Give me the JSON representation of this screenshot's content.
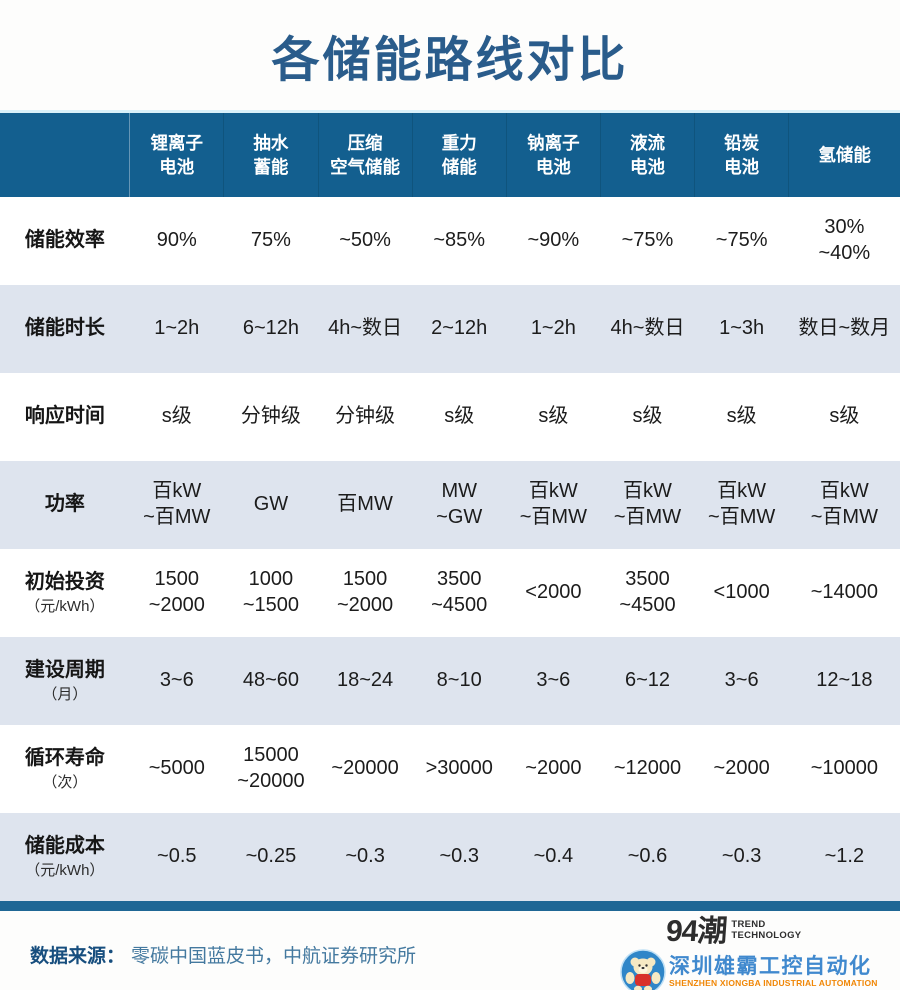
{
  "title": "各储能路线对比",
  "table": {
    "headers": [
      "锂离子\n电池",
      "抽水\n蓄能",
      "压缩\n空气储能",
      "重力\n储能",
      "钠离子\n电池",
      "液流\n电池",
      "铅炭\n电池",
      "氢储能"
    ],
    "rows": [
      {
        "label": "储能效率",
        "unit": "",
        "values": [
          "90%",
          "75%",
          "~50%",
          "~85%",
          "~90%",
          "~75%",
          "~75%",
          "30%\n~40%"
        ]
      },
      {
        "label": "储能时长",
        "unit": "",
        "values": [
          "1~2h",
          "6~12h",
          "4h~数日",
          "2~12h",
          "1~2h",
          "4h~数日",
          "1~3h",
          "数日~数月"
        ]
      },
      {
        "label": "响应时间",
        "unit": "",
        "values": [
          "s级",
          "分钟级",
          "分钟级",
          "s级",
          "s级",
          "s级",
          "s级",
          "s级"
        ]
      },
      {
        "label": "功率",
        "unit": "",
        "values": [
          "百kW\n~百MW",
          "GW",
          "百MW",
          "MW\n~GW",
          "百kW\n~百MW",
          "百kW\n~百MW",
          "百kW\n~百MW",
          "百kW\n~百MW"
        ]
      },
      {
        "label": "初始投资",
        "unit": "（元/kWh）",
        "values": [
          "1500\n~2000",
          "1000\n~1500",
          "1500\n~2000",
          "3500\n~4500",
          "<2000",
          "3500\n~4500",
          "<1000",
          "~14000"
        ]
      },
      {
        "label": "建设周期",
        "unit": "（月）",
        "values": [
          "3~6",
          "48~60",
          "18~24",
          "8~10",
          "3~6",
          "6~12",
          "3~6",
          "12~18"
        ]
      },
      {
        "label": "循环寿命",
        "unit": "（次）",
        "values": [
          "~5000",
          "15000\n~20000",
          "~20000",
          ">30000",
          "~2000",
          "~12000",
          "~2000",
          "~10000"
        ]
      },
      {
        "label": "储能成本",
        "unit": "（元/kWh）",
        "values": [
          "~0.5",
          "~0.25",
          "~0.3",
          "~0.3",
          "~0.4",
          "~0.6",
          "~0.3",
          "~1.2"
        ]
      }
    ]
  },
  "footer": {
    "source_label": "数据来源：",
    "source_text": "零碳中国蓝皮书，中航证券研究所"
  },
  "branding": {
    "logo_text": "94潮",
    "logo_sub": "TREND\nTECHNOLOGY",
    "watermark_cn": "深圳雄霸工控自动化",
    "watermark_en": "SHENZHEN XIONGBA INDUSTRIAL AUTOMATION"
  },
  "colors": {
    "title_blue": "#2a5c8b",
    "header_bg": "#135f8f",
    "row_alt": "#dee4ee",
    "bottom_bar": "#1f6795",
    "source_label": "#174e7e",
    "source_text": "#44799f",
    "watermark_blue": "#4089ce",
    "watermark_orange": "#f08605"
  }
}
